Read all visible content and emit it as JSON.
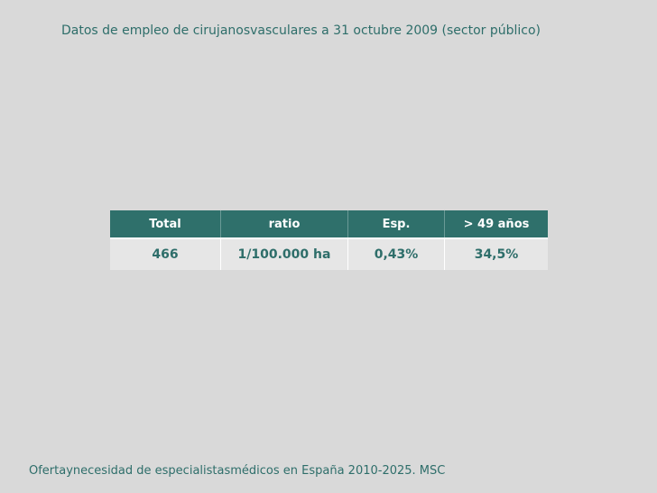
{
  "header": {
    "title": "Datos de empleo de cirujanosvasculares a 31 octubre 2009 (sector público)"
  },
  "table": {
    "headers": [
      "Total",
      "ratio",
      "Esp.",
      "> 49 años"
    ],
    "rows": [
      [
        "466",
        "1/100.000 ha",
        "0,43%",
        "34,5%"
      ]
    ]
  },
  "footer": {
    "source": "Ofertaynecesidad de especialistasmédicos en España 2010-2025. MSC"
  }
}
